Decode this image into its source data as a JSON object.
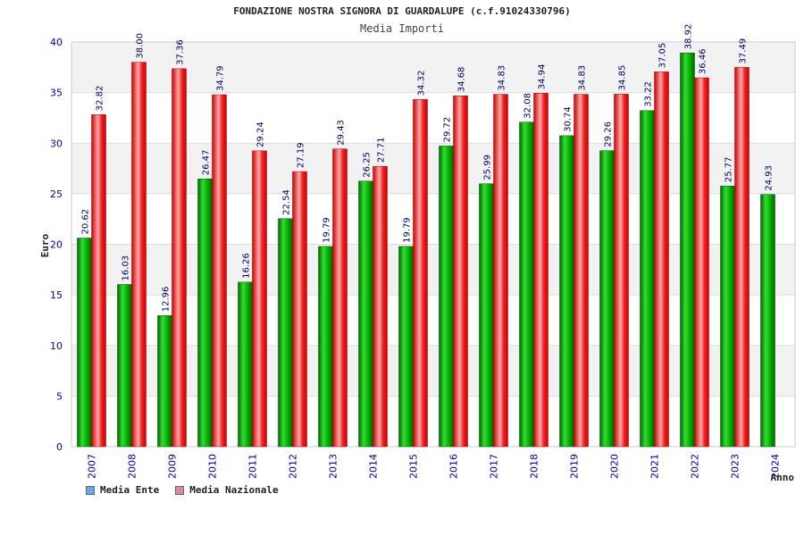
{
  "chart_data": {
    "type": "bar",
    "title": "FONDAZIONE NOSTRA SIGNORA DI GUARDALUPE (c.f.91024330796)",
    "subtitle": "Media Importi",
    "xlabel": "Anno",
    "ylabel": "Euro",
    "ylim": [
      0,
      40
    ],
    "yticks": [
      "0",
      "5",
      "10",
      "15",
      "20",
      "25",
      "30",
      "35",
      "40"
    ],
    "grid": true,
    "legend_position": "bottom-left",
    "categories": [
      "2007",
      "2008",
      "2009",
      "2010",
      "2011",
      "2012",
      "2013",
      "2014",
      "2015",
      "2016",
      "2017",
      "2018",
      "2019",
      "2020",
      "2021",
      "2022",
      "2023",
      "2024"
    ],
    "series": [
      {
        "name": "Media Ente",
        "color": "#00aa00",
        "legend_color": "#66aaee",
        "values": [
          20.62,
          16.03,
          12.96,
          26.47,
          16.26,
          22.54,
          19.79,
          26.25,
          19.79,
          29.72,
          25.99,
          32.08,
          30.74,
          29.26,
          33.22,
          38.92,
          25.77,
          24.93
        ],
        "labels": [
          "20.62",
          "16.03",
          "12.96",
          "26.47",
          "16.26",
          "22.54",
          "19.79",
          "26.25",
          "19.79",
          "29.72",
          "25.99",
          "32.08",
          "30.74",
          "29.26",
          "33.22",
          "38.92",
          "25.77",
          "24.93"
        ]
      },
      {
        "name": "Media Nazionale",
        "color": "#ee1111",
        "legend_color": "#dd88aa",
        "values": [
          32.82,
          38.0,
          37.36,
          34.79,
          29.24,
          27.19,
          29.43,
          27.71,
          34.32,
          34.68,
          34.83,
          34.94,
          34.83,
          34.85,
          37.05,
          36.46,
          37.49,
          null
        ],
        "labels": [
          "32.82",
          "38.00",
          "37.36",
          "34.79",
          "29.24",
          "27.19",
          "29.43",
          "27.71",
          "34.32",
          "34.68",
          "34.83",
          "34.94",
          "34.83",
          "34.85",
          "37.05",
          "36.46",
          "37.49",
          ""
        ]
      }
    ]
  }
}
